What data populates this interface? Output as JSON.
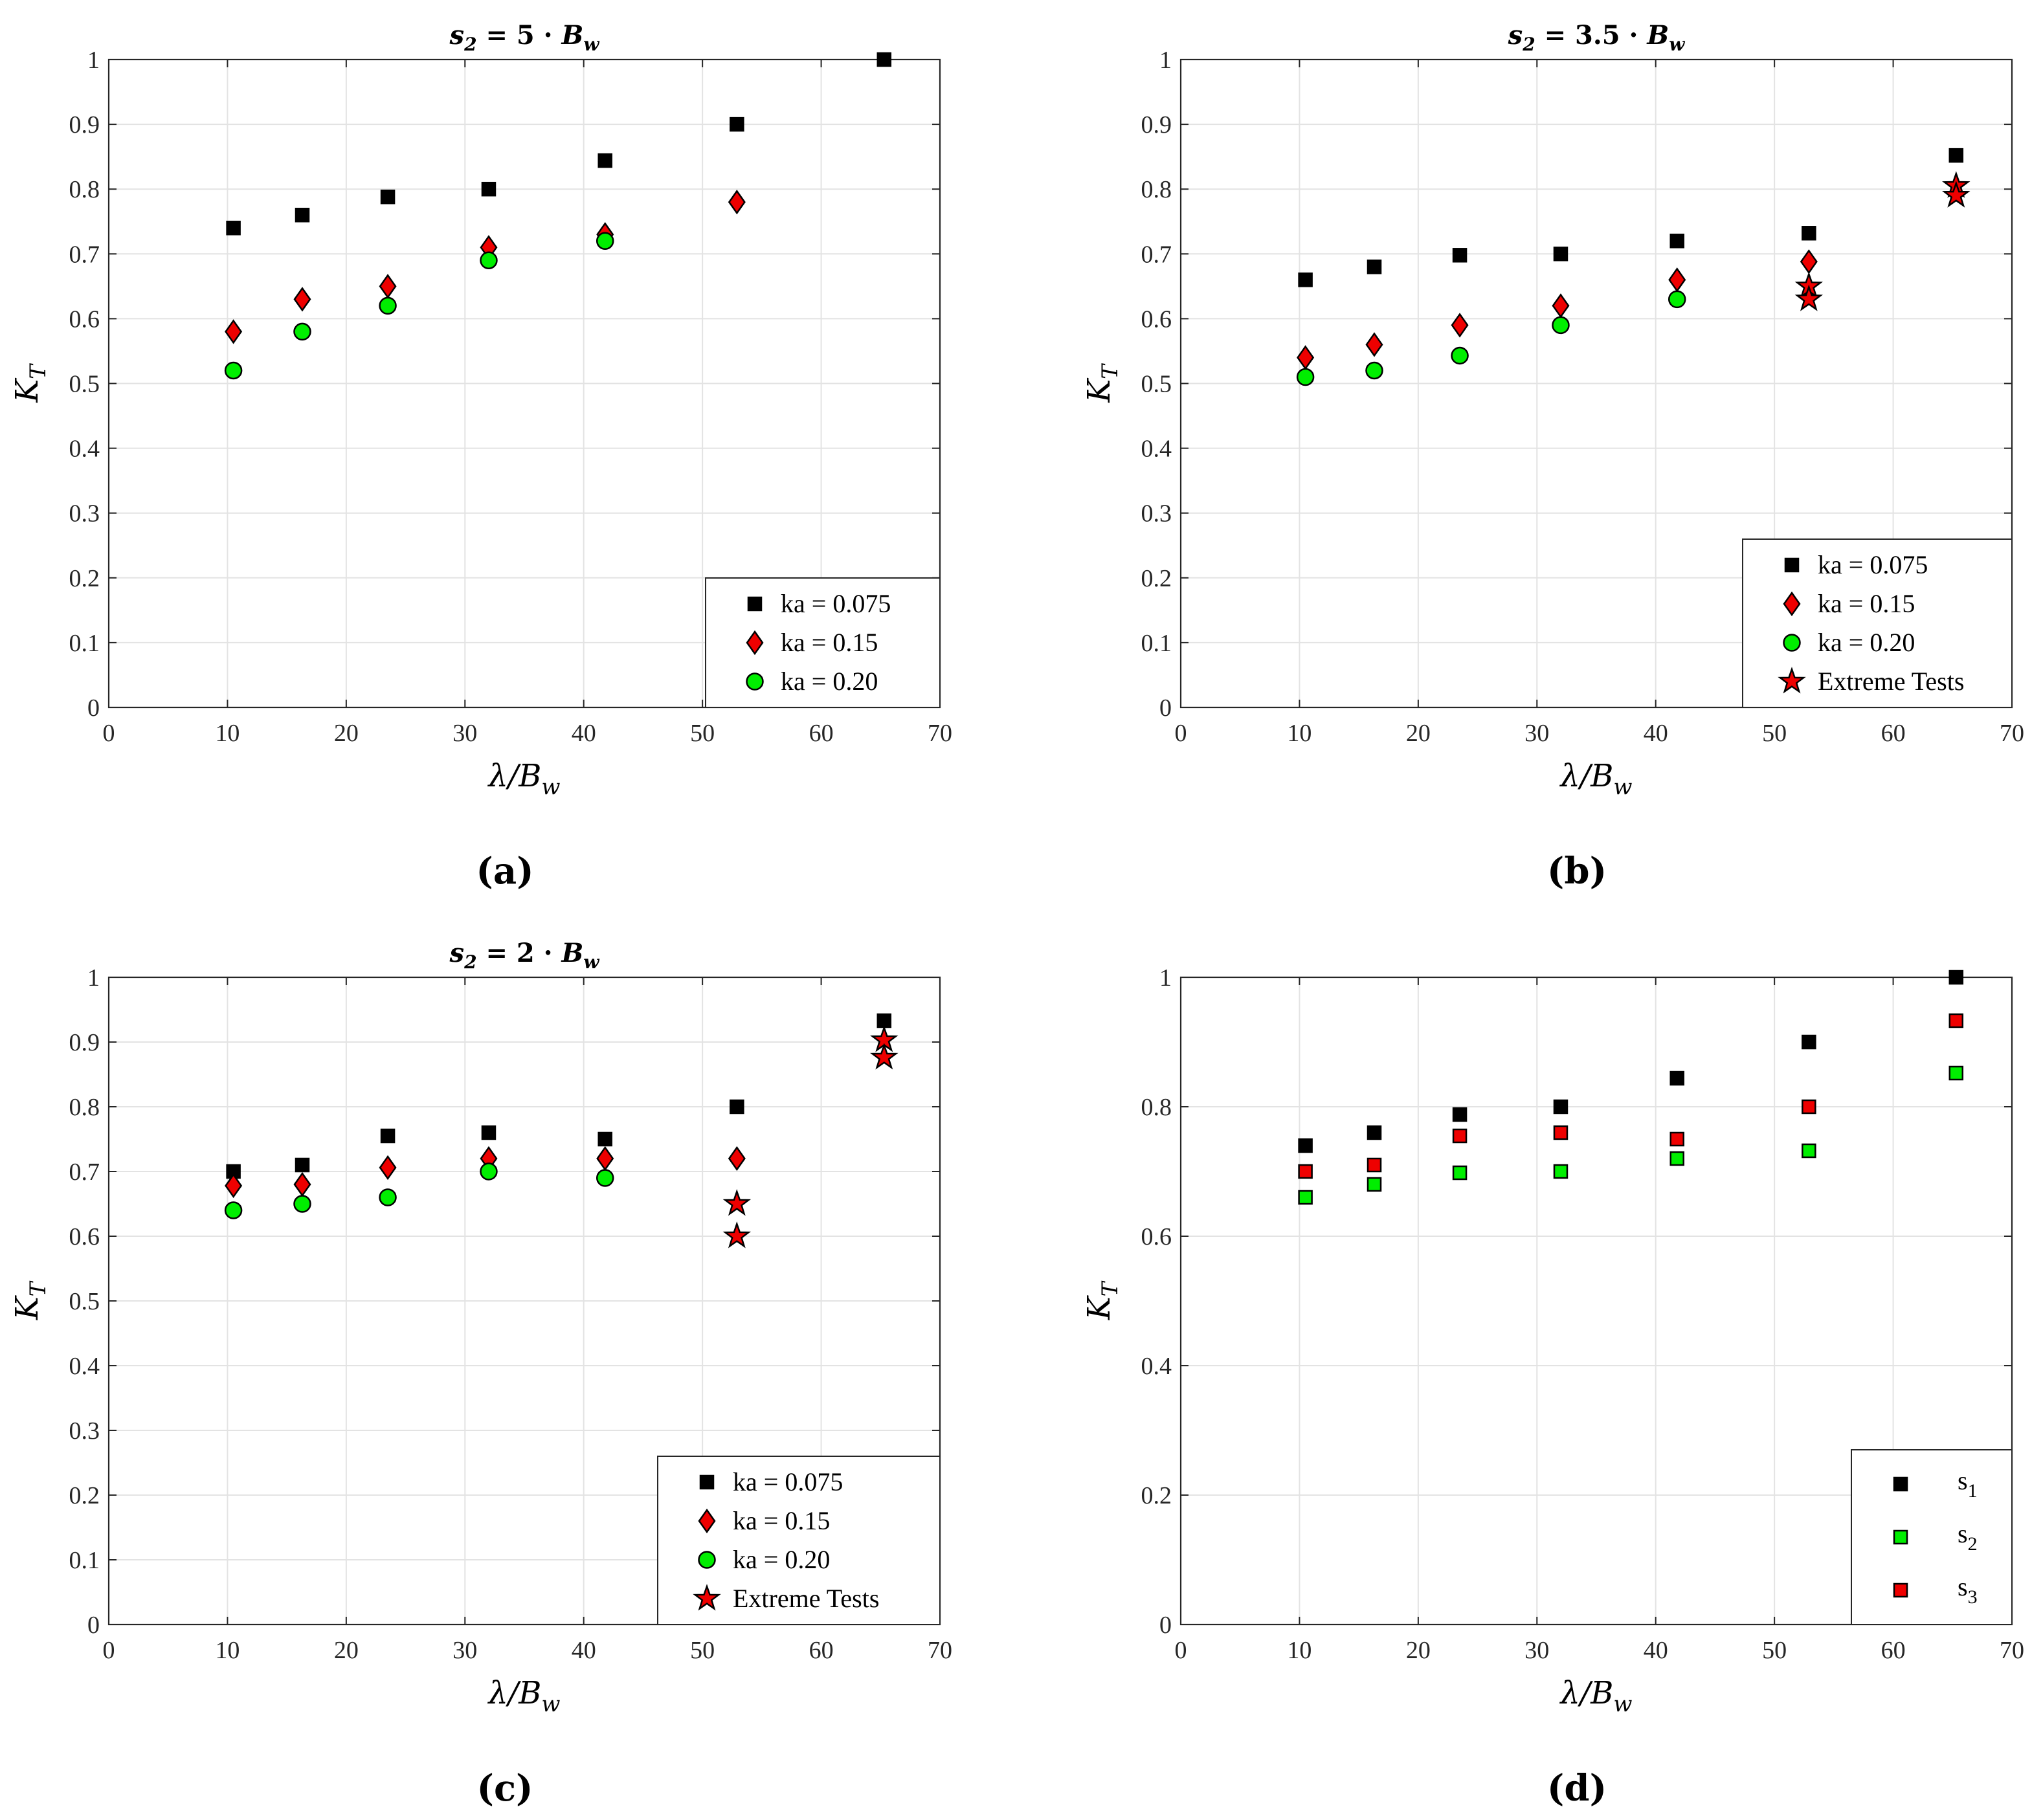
{
  "colors": {
    "black_square": "#000000",
    "red_diamond": "#ee0000",
    "green_circle": "#00ee00",
    "star": "#ee0000",
    "s2_square": "#00ee00",
    "s3_square": "#ee0000"
  },
  "chart_data": [
    {
      "id": "a",
      "type": "scatter",
      "panel_label": "(a)",
      "title": "s₂ = 5 · B_w",
      "title_parts": {
        "main": "s",
        "sub": "2",
        "eq": " = 5 · ",
        "var": "B",
        "var_sub": "w"
      },
      "xlabel": "λ/B_w",
      "ylabel": "K_T",
      "xlim": [
        0,
        70
      ],
      "ylim": [
        0,
        1
      ],
      "xticks": [
        0,
        10,
        20,
        30,
        40,
        50,
        60,
        70
      ],
      "yticks": [
        0,
        0.1,
        0.2,
        0.3,
        0.4,
        0.5,
        0.6,
        0.7,
        0.8,
        0.9,
        1
      ],
      "ytick_labels": [
        "0",
        "0.1",
        "0.2",
        "0.3",
        "0.4",
        "0.5",
        "0.6",
        "0.7",
        "0.8",
        "0.9",
        "1"
      ],
      "grid": true,
      "legend_position": "bottom-right",
      "series": [
        {
          "name": "ka = 0.075",
          "marker": "square",
          "color": "#000000",
          "x": [
            10.5,
            16.3,
            23.5,
            32,
            41.8,
            52.9,
            65.3
          ],
          "y": [
            0.74,
            0.76,
            0.788,
            0.8,
            0.844,
            0.9,
            1.0
          ]
        },
        {
          "name": "ka = 0.15",
          "marker": "diamond",
          "color": "#ee0000",
          "x": [
            10.5,
            16.3,
            23.5,
            32,
            41.8,
            52.9
          ],
          "y": [
            0.58,
            0.63,
            0.65,
            0.71,
            0.73,
            0.78
          ]
        },
        {
          "name": "ka = 0.20",
          "marker": "circle",
          "color": "#00ee00",
          "x": [
            10.5,
            16.3,
            23.5,
            32,
            41.8
          ],
          "y": [
            0.52,
            0.58,
            0.62,
            0.69,
            0.72
          ]
        }
      ]
    },
    {
      "id": "b",
      "type": "scatter",
      "panel_label": "(b)",
      "title": "s₂ = 3.5 · B_w",
      "title_parts": {
        "main": "s",
        "sub": "2",
        "eq": " = 3.5 · ",
        "var": "B",
        "var_sub": "w"
      },
      "xlabel": "λ/B_w",
      "ylabel": "K_T",
      "xlim": [
        0,
        70
      ],
      "ylim": [
        0,
        1
      ],
      "xticks": [
        0,
        10,
        20,
        30,
        40,
        50,
        60,
        70
      ],
      "yticks": [
        0,
        0.1,
        0.2,
        0.3,
        0.4,
        0.5,
        0.6,
        0.7,
        0.8,
        0.9,
        1
      ],
      "ytick_labels": [
        "0",
        "0.1",
        "0.2",
        "0.3",
        "0.4",
        "0.5",
        "0.6",
        "0.7",
        "0.8",
        "0.9",
        "1"
      ],
      "grid": true,
      "legend_position": "bottom-right",
      "series": [
        {
          "name": "ka = 0.075",
          "marker": "square",
          "color": "#000000",
          "x": [
            10.5,
            16.3,
            23.5,
            32,
            41.8,
            52.9,
            65.3
          ],
          "y": [
            0.66,
            0.68,
            0.698,
            0.7,
            0.72,
            0.732,
            0.852
          ]
        },
        {
          "name": "ka = 0.15",
          "marker": "diamond",
          "color": "#ee0000",
          "x": [
            10.5,
            16.3,
            23.5,
            32,
            41.8,
            52.9
          ],
          "y": [
            0.54,
            0.56,
            0.59,
            0.62,
            0.66,
            0.688
          ]
        },
        {
          "name": "ka = 0.20",
          "marker": "circle",
          "color": "#00ee00",
          "x": [
            10.5,
            16.3,
            23.5,
            32,
            41.8
          ],
          "y": [
            0.51,
            0.52,
            0.543,
            0.59,
            0.63
          ]
        },
        {
          "name": "Extreme Tests",
          "marker": "star",
          "color": "#ee0000",
          "x": [
            52.9,
            52.9,
            65.3,
            65.3
          ],
          "y": [
            0.65,
            0.63,
            0.805,
            0.79
          ]
        }
      ]
    },
    {
      "id": "c",
      "type": "scatter",
      "panel_label": "(c)",
      "title": "s₂ = 2 · B_w",
      "title_parts": {
        "main": "s",
        "sub": "2",
        "eq": " = 2 · ",
        "var": "B",
        "var_sub": "w"
      },
      "xlabel": "λ/B_w",
      "ylabel": "K_T",
      "xlim": [
        0,
        70
      ],
      "ylim": [
        0,
        1
      ],
      "xticks": [
        0,
        10,
        20,
        30,
        40,
        50,
        60,
        70
      ],
      "yticks": [
        0,
        0.1,
        0.2,
        0.3,
        0.4,
        0.5,
        0.6,
        0.7,
        0.8,
        0.9,
        1
      ],
      "ytick_labels": [
        "0",
        "0.1",
        "0.2",
        "0.3",
        "0.4",
        "0.5",
        "0.6",
        "0.7",
        "0.8",
        "0.9",
        "1"
      ],
      "grid": true,
      "legend_position": "bottom-right",
      "series": [
        {
          "name": "ka = 0.075",
          "marker": "square",
          "color": "#000000",
          "x": [
            10.5,
            16.3,
            23.5,
            32,
            41.8,
            52.9,
            65.3
          ],
          "y": [
            0.7,
            0.71,
            0.755,
            0.76,
            0.75,
            0.8,
            0.933
          ]
        },
        {
          "name": "ka = 0.15",
          "marker": "diamond",
          "color": "#ee0000",
          "x": [
            10.5,
            16.3,
            23.5,
            32,
            41.8,
            52.9
          ],
          "y": [
            0.678,
            0.68,
            0.706,
            0.72,
            0.72,
            0.72
          ]
        },
        {
          "name": "ka = 0.20",
          "marker": "circle",
          "color": "#00ee00",
          "x": [
            10.5,
            16.3,
            23.5,
            32,
            41.8
          ],
          "y": [
            0.64,
            0.65,
            0.66,
            0.7,
            0.69
          ]
        },
        {
          "name": "Extreme Tests",
          "marker": "star",
          "color": "#ee0000",
          "x": [
            52.9,
            52.9,
            65.3,
            65.3
          ],
          "y": [
            0.65,
            0.6,
            0.903,
            0.876
          ]
        }
      ]
    },
    {
      "id": "d",
      "type": "scatter",
      "panel_label": "(d)",
      "title": "",
      "xlabel": "λ/B_w",
      "ylabel": "K_T",
      "xlim": [
        0,
        70
      ],
      "ylim": [
        0,
        1
      ],
      "xticks": [
        0,
        10,
        20,
        30,
        40,
        50,
        60,
        70
      ],
      "yticks": [
        0,
        0.2,
        0.4,
        0.6,
        0.8,
        1
      ],
      "ytick_labels": [
        "0",
        "0.2",
        "0.4",
        "0.6",
        "0.8",
        "1"
      ],
      "grid": true,
      "legend_position": "bottom-right",
      "series": [
        {
          "name": "s1",
          "label_main": "s",
          "label_sub": "1",
          "marker": "square",
          "color": "#000000",
          "x": [
            10.5,
            16.3,
            23.5,
            32,
            41.8,
            52.9,
            65.3
          ],
          "y": [
            0.74,
            0.76,
            0.788,
            0.8,
            0.844,
            0.9,
            1.0
          ]
        },
        {
          "name": "s2",
          "label_main": "s",
          "label_sub": "2",
          "marker": "square",
          "color": "#00ee00",
          "x": [
            10.5,
            16.3,
            23.5,
            32,
            41.8,
            52.9,
            65.3
          ],
          "y": [
            0.66,
            0.68,
            0.698,
            0.7,
            0.72,
            0.732,
            0.852
          ]
        },
        {
          "name": "s3",
          "label_main": "s",
          "label_sub": "3",
          "marker": "square",
          "color": "#ee0000",
          "x": [
            10.5,
            16.3,
            23.5,
            32,
            41.8,
            52.9,
            65.3
          ],
          "y": [
            0.7,
            0.71,
            0.755,
            0.76,
            0.75,
            0.8,
            0.933
          ]
        }
      ]
    }
  ]
}
